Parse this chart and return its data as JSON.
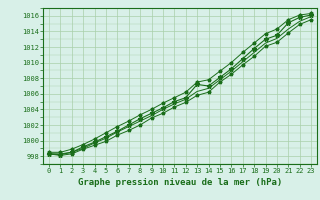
{
  "title": "Graphe pression niveau de la mer (hPa)",
  "xlabel_hours": [
    0,
    1,
    2,
    3,
    4,
    5,
    6,
    7,
    8,
    9,
    10,
    11,
    12,
    13,
    14,
    15,
    16,
    17,
    18,
    19,
    20,
    21,
    22,
    23
  ],
  "pressure_main": [
    998.3,
    998.2,
    998.5,
    999.2,
    999.8,
    1000.5,
    1001.2,
    1002.0,
    1002.8,
    1003.5,
    1004.2,
    1005.0,
    1005.5,
    1007.2,
    1007.0,
    1008.1,
    1009.2,
    1010.5,
    1011.8,
    1013.0,
    1013.5,
    1015.1,
    1015.8,
    1016.1
  ],
  "pressure_low": [
    998.3,
    998.1,
    998.3,
    998.9,
    999.4,
    999.9,
    1000.7,
    1001.3,
    1002.0,
    1002.9,
    1003.5,
    1004.3,
    1004.9,
    1005.8,
    1006.2,
    1007.5,
    1008.5,
    1009.7,
    1010.8,
    1012.1,
    1012.6,
    1013.8,
    1014.9,
    1015.5
  ],
  "pressure_high": [
    998.5,
    998.5,
    998.9,
    999.5,
    1000.2,
    1001.0,
    1001.8,
    1002.5,
    1003.3,
    1004.0,
    1004.8,
    1005.5,
    1006.2,
    1007.5,
    1007.8,
    1008.9,
    1010.0,
    1011.3,
    1012.5,
    1013.7,
    1014.3,
    1015.5,
    1016.1,
    1016.3
  ],
  "pressure_smooth": [
    998.3,
    998.3,
    998.5,
    999.0,
    999.7,
    1000.3,
    1001.1,
    1001.8,
    1002.5,
    1003.2,
    1004.0,
    1004.7,
    1005.3,
    1006.3,
    1006.7,
    1007.8,
    1008.9,
    1010.1,
    1011.3,
    1012.5,
    1013.1,
    1014.3,
    1015.3,
    1015.9
  ],
  "ylim": [
    997,
    1017
  ],
  "yticks": [
    998,
    1000,
    1002,
    1004,
    1006,
    1008,
    1010,
    1012,
    1014,
    1016
  ],
  "line_color": "#1a6e1a",
  "bg_color": "#d8f0e8",
  "grid_color": "#aacfaa",
  "marker": "*",
  "marker_size": 3.5,
  "tick_fontsize": 5.0,
  "label_fontsize": 6.5
}
